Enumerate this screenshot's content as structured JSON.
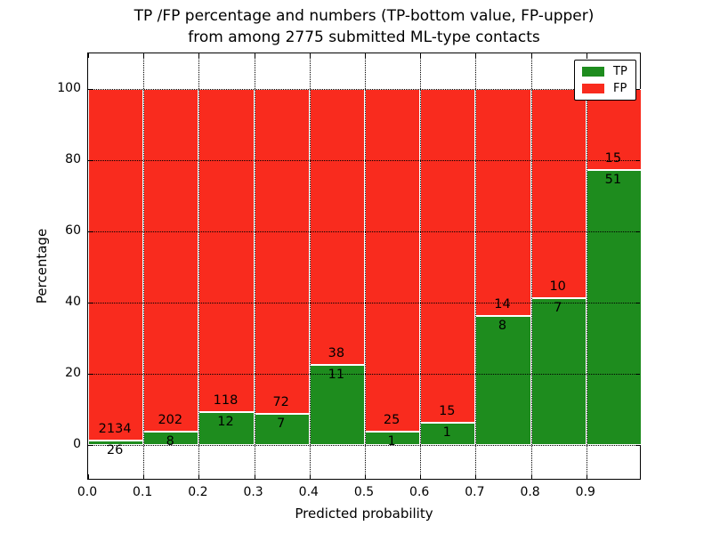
{
  "title": {
    "line1": "TP /FP percentage and numbers (TP-bottom value, FP-upper)",
    "line2": "from among 2775 submitted ML-type contacts"
  },
  "x_axis": {
    "label": "Predicted probability",
    "ticks": [
      "0.0",
      "0.1",
      "0.2",
      "0.3",
      "0.4",
      "0.5",
      "0.6",
      "0.7",
      "0.8",
      "0.9"
    ]
  },
  "y_axis": {
    "label": "Percentage",
    "ticks": [
      "0",
      "20",
      "40",
      "60",
      "80",
      "100"
    ]
  },
  "legend": {
    "items": [
      {
        "label": "TP",
        "color": "#1e8c1e"
      },
      {
        "label": "FP",
        "color": "#f92b1e"
      }
    ]
  },
  "colors": {
    "tp": "#1e8c1e",
    "fp": "#f92b1e",
    "grid": "#000000",
    "background": "#ffffff",
    "frame": "#000000"
  },
  "chart_data": {
    "type": "bar",
    "subtype": "stacked-percentage",
    "title": "TP /FP percentage and numbers (TP-bottom value, FP-upper) from among 2775 submitted ML-type contacts",
    "xlabel": "Predicted probability",
    "ylabel": "Percentage",
    "xlim": [
      0,
      1.0
    ],
    "ylim": [
      -10,
      110
    ],
    "ytick_values": [
      0,
      20,
      40,
      60,
      80,
      100
    ],
    "xtick_values": [
      0.0,
      0.1,
      0.2,
      0.3,
      0.4,
      0.5,
      0.6,
      0.7,
      0.8,
      0.9
    ],
    "grid": "dotted",
    "legend_position": "upper right",
    "bin_width": 0.1,
    "categories": [
      "0.0-0.1",
      "0.1-0.2",
      "0.2-0.3",
      "0.3-0.4",
      "0.4-0.5",
      "0.5-0.6",
      "0.6-0.7",
      "0.7-0.8",
      "0.8-0.9",
      "0.9-1.0"
    ],
    "series": [
      {
        "name": "TP",
        "color": "#1e8c1e",
        "counts": [
          26,
          8,
          12,
          7,
          11,
          1,
          1,
          8,
          7,
          51
        ]
      },
      {
        "name": "FP",
        "color": "#f92b1e",
        "counts": [
          2134,
          202,
          118,
          72,
          38,
          25,
          15,
          14,
          10,
          15
        ]
      }
    ],
    "total_contacts": 2775
  }
}
